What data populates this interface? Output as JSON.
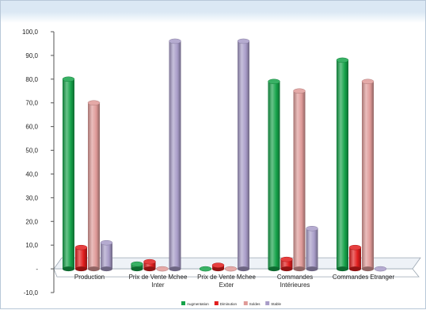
{
  "chart_data": {
    "type": "bar",
    "categories": [
      [
        "Production"
      ],
      [
        "Prix de Vente Mchee",
        "Inter"
      ],
      [
        "Prix de Vente Mchee",
        "Exter"
      ],
      [
        "Commandes",
        "Intérieures"
      ],
      [
        "Commandes Etranger"
      ]
    ],
    "series": [
      {
        "name": "Augmentation",
        "color": "#16a34a",
        "values": [
          80.0,
          2.0,
          0.0,
          79.0,
          88.0
        ]
      },
      {
        "name": "Diminution",
        "color": "#e11d1d",
        "values": [
          9.0,
          3.0,
          1.5,
          4.0,
          9.0
        ]
      },
      {
        "name": "Soldes",
        "color": "#df9a98",
        "values": [
          70.0,
          0.0,
          0.0,
          75.0,
          79.0
        ]
      },
      {
        "name": "Stable",
        "color": "#a89cc8",
        "values": [
          11.0,
          96.0,
          96.0,
          17.0,
          0.0
        ]
      }
    ],
    "ylim": [
      -10,
      100
    ],
    "ytick_values": [
      -10,
      0,
      10,
      20,
      30,
      40,
      50,
      60,
      70,
      80,
      90,
      100
    ],
    "ytick_labels": [
      "-10,0",
      "-",
      "10,0",
      "20,0",
      "30,0",
      "40,0",
      "50,0",
      "60,0",
      "70,0",
      "80,0",
      "90,0",
      "100,0"
    ],
    "grid": false,
    "legend_position": "bottom",
    "style": "3d-cylinder"
  }
}
